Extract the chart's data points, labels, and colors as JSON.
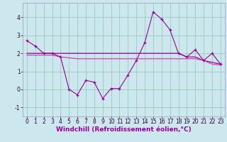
{
  "line1": {
    "x": [
      0,
      1,
      2,
      3,
      4,
      5,
      6,
      7,
      8,
      9,
      10,
      11,
      12,
      13,
      14,
      15,
      16,
      17,
      18,
      19,
      20,
      21,
      22,
      23
    ],
    "y": [
      2.7,
      2.4,
      2.0,
      2.0,
      1.8,
      0.0,
      -0.3,
      0.5,
      0.4,
      -0.5,
      0.05,
      0.05,
      0.8,
      1.6,
      2.6,
      4.3,
      3.9,
      3.3,
      2.0,
      1.8,
      2.2,
      1.6,
      2.0,
      1.4
    ],
    "color": "#990099"
  },
  "line2": {
    "x": [
      0,
      1,
      2,
      3,
      4,
      5,
      6,
      7,
      8,
      9,
      10,
      11,
      12,
      13,
      14,
      15,
      16,
      17,
      18,
      19,
      20,
      21,
      22,
      23
    ],
    "y": [
      2.0,
      2.0,
      2.0,
      2.0,
      2.0,
      2.0,
      2.0,
      2.0,
      2.0,
      2.0,
      2.0,
      2.0,
      2.0,
      2.0,
      2.0,
      2.0,
      2.0,
      2.0,
      2.0,
      1.8,
      1.8,
      1.6,
      1.5,
      1.4
    ],
    "color": "#990099"
  },
  "line3": {
    "x": [
      0,
      1,
      2,
      3,
      4,
      5,
      6,
      7,
      8,
      9,
      10,
      11,
      12,
      13,
      14,
      15,
      16,
      17,
      18,
      19,
      20,
      21,
      22,
      23
    ],
    "y": [
      1.9,
      1.9,
      1.9,
      1.9,
      1.8,
      1.75,
      1.7,
      1.7,
      1.7,
      1.7,
      1.7,
      1.7,
      1.7,
      1.7,
      1.7,
      1.7,
      1.7,
      1.7,
      1.7,
      1.7,
      1.7,
      1.6,
      1.4,
      1.35
    ],
    "color": "#cc44aa"
  },
  "bg_color": "#cce8ee",
  "grid_color": "#99ccbb",
  "spine_color": "#9999bb",
  "xlabel": "Windchill (Refroidissement éolien,°C)",
  "label_color": "#990099",
  "xlabel_fontsize": 6.5,
  "tick_fontsize": 5.5,
  "ylim": [
    -1.5,
    4.8
  ],
  "xlim": [
    -0.5,
    23.5
  ],
  "yticks": [
    -1,
    0,
    1,
    2,
    3,
    4
  ],
  "xticks": [
    0,
    1,
    2,
    3,
    4,
    5,
    6,
    7,
    8,
    9,
    10,
    11,
    12,
    13,
    14,
    15,
    16,
    17,
    18,
    19,
    20,
    21,
    22,
    23
  ]
}
